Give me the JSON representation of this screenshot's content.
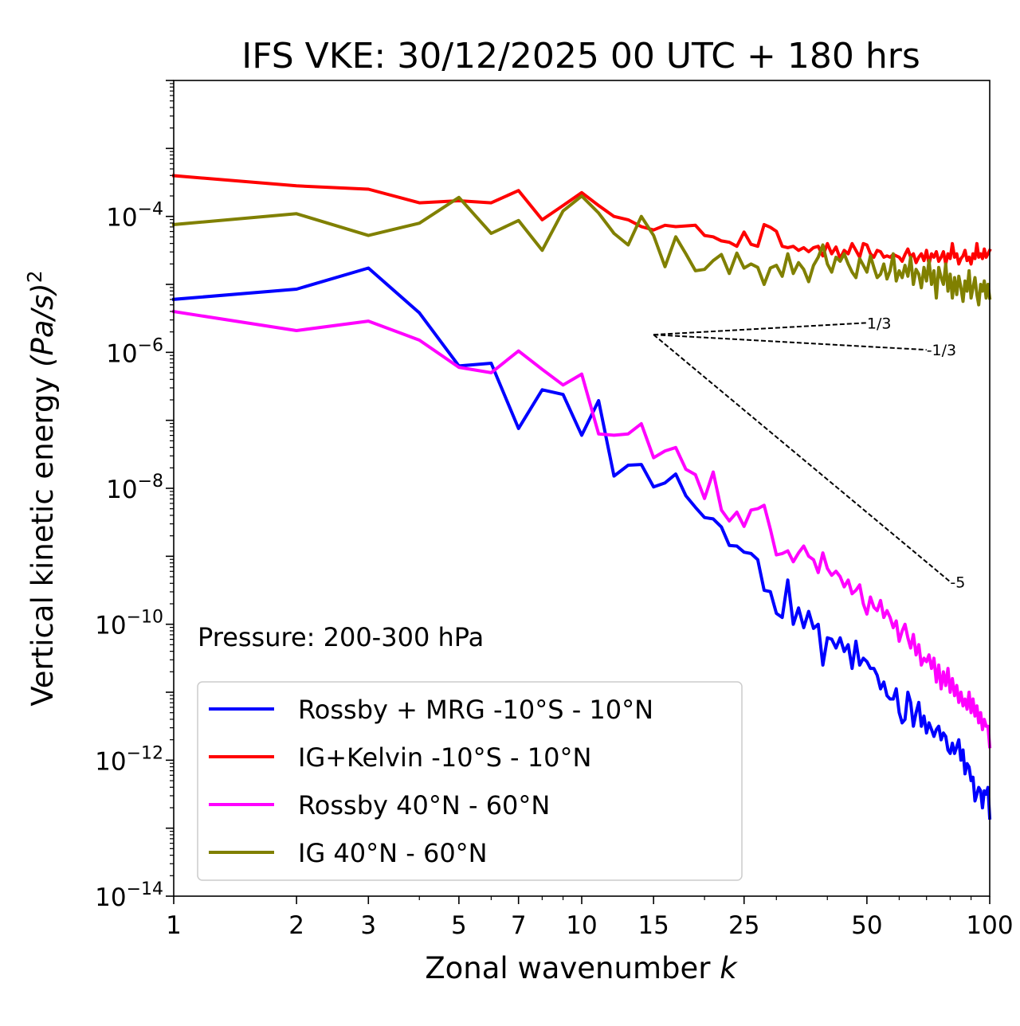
{
  "chart_data": {
    "type": "line",
    "title": "IFS VKE: 30/12/2025 00 UTC + 180 hrs",
    "xlabel": "Zonal wavenumber",
    "xlabel_var": "k",
    "ylabel": "Vertical kinetic energy",
    "ylabel_unit": "(Pa/s)",
    "ylabel_exponent": "2",
    "xscale": "log",
    "yscale": "log",
    "xlim": [
      1,
      100
    ],
    "ylim": [
      1e-14,
      0.01
    ],
    "xticks": [
      1,
      2,
      3,
      5,
      7,
      10,
      15,
      25,
      50,
      100
    ],
    "xtick_labels": [
      "1",
      "2",
      "3",
      "5",
      "7",
      "10",
      "15",
      "25",
      "50",
      "100"
    ],
    "yticks": [
      1e-14,
      1e-12,
      1e-10,
      1e-08,
      1e-06,
      0.0001
    ],
    "ytick_base": "10",
    "ytick_exponents": [
      "−14",
      "−12",
      "−10",
      "−8",
      "−6",
      "−4"
    ],
    "annotation": "Pressure: 200-300 hPa",
    "legend_position": "lower-left",
    "series": [
      {
        "name": "Rossby + MRG -10°S - 10°N",
        "color": "#0000ff",
        "x": [
          1,
          2,
          3,
          4,
          5,
          6,
          7,
          8,
          9,
          10,
          11,
          12,
          13,
          14,
          15,
          16,
          17,
          18,
          19,
          20,
          21,
          22,
          23,
          24,
          25,
          26,
          27,
          28,
          29,
          30,
          31,
          32,
          33,
          34,
          35,
          36,
          37,
          38,
          39,
          40,
          41,
          42,
          43,
          44,
          45,
          46,
          47,
          48,
          49,
          50,
          51,
          52,
          53,
          54,
          55,
          56,
          57,
          58,
          59,
          60,
          61,
          62,
          63,
          64,
          65,
          66,
          67,
          68,
          69,
          70,
          71,
          72,
          73,
          74,
          75,
          76,
          77,
          78,
          79,
          80,
          81,
          82,
          83,
          84,
          85,
          86,
          87,
          88,
          89,
          90,
          91,
          92,
          93,
          94,
          95,
          96,
          97,
          98,
          99,
          100
        ],
        "y_log10": [
          -5.22,
          -5.07,
          -4.76,
          -5.42,
          -6.2,
          -6.16,
          -7.12,
          -6.55,
          -6.62,
          -7.22,
          -6.71,
          -7.82,
          -7.66,
          -7.65,
          -7.98,
          -7.92,
          -7.79,
          -8.11,
          -8.28,
          -8.43,
          -8.45,
          -8.57,
          -8.84,
          -8.85,
          -8.94,
          -8.96,
          -9.05,
          -9.5,
          -9.52,
          -9.84,
          -9.9,
          -9.35,
          -10.0,
          -9.76,
          -10.05,
          -9.81,
          -10.06,
          -10.0,
          -10.6,
          -10.2,
          -10.22,
          -10.35,
          -10.2,
          -10.4,
          -10.3,
          -10.65,
          -10.25,
          -10.6,
          -10.5,
          -10.55,
          -10.65,
          -10.65,
          -10.75,
          -10.95,
          -10.85,
          -11.05,
          -11.1,
          -11.1,
          -10.95,
          -11.3,
          -11.45,
          -11.4,
          -11.0,
          -11.15,
          -11.5,
          -11.3,
          -11.15,
          -11.5,
          -11.35,
          -11.6,
          -11.45,
          -11.55,
          -11.65,
          -11.55,
          -11.5,
          -11.7,
          -11.6,
          -11.65,
          -11.85,
          -11.9,
          -11.75,
          -11.9,
          -11.8,
          -11.7,
          -12.0,
          -11.85,
          -12.2,
          -12.05,
          -12.1,
          -12.3,
          -12.25,
          -12.6,
          -12.5,
          -12.4,
          -12.45,
          -12.7,
          -12.45,
          -12.5,
          -12.4,
          -12.85
        ]
      },
      {
        "name": "IG+Kelvin -10°S - 10°N",
        "color": "#ff0000",
        "x": [
          1,
          2,
          3,
          4,
          5,
          6,
          7,
          8,
          9,
          10,
          11,
          12,
          13,
          14,
          15,
          16,
          17,
          18,
          19,
          20,
          21,
          22,
          23,
          24,
          25,
          26,
          27,
          28,
          29,
          30,
          31,
          32,
          33,
          34,
          35,
          36,
          37,
          38,
          39,
          40,
          41,
          42,
          43,
          44,
          45,
          46,
          47,
          48,
          49,
          50,
          51,
          52,
          53,
          54,
          55,
          56,
          57,
          58,
          59,
          60,
          61,
          62,
          63,
          64,
          65,
          66,
          67,
          68,
          69,
          70,
          71,
          72,
          73,
          74,
          75,
          76,
          77,
          78,
          79,
          80,
          81,
          82,
          83,
          84,
          85,
          86,
          87,
          88,
          89,
          90,
          91,
          92,
          93,
          94,
          95,
          96,
          97,
          98,
          99,
          100
        ],
        "y_log10": [
          -3.4,
          -3.55,
          -3.6,
          -3.8,
          -3.77,
          -3.8,
          -3.62,
          -4.05,
          -3.84,
          -3.65,
          -3.84,
          -4.0,
          -4.05,
          -4.15,
          -4.2,
          -4.13,
          -4.15,
          -4.14,
          -4.13,
          -4.28,
          -4.3,
          -4.36,
          -4.38,
          -4.44,
          -4.23,
          -4.41,
          -4.44,
          -4.12,
          -4.16,
          -4.22,
          -4.44,
          -4.46,
          -4.44,
          -4.5,
          -4.46,
          -4.52,
          -4.46,
          -4.44,
          -4.58,
          -4.4,
          -4.55,
          -4.45,
          -4.62,
          -4.5,
          -4.55,
          -4.4,
          -4.5,
          -4.6,
          -4.4,
          -4.42,
          -4.55,
          -4.6,
          -4.5,
          -4.52,
          -4.6,
          -4.58,
          -4.6,
          -4.56,
          -4.58,
          -4.6,
          -4.66,
          -4.56,
          -4.48,
          -4.6,
          -4.55,
          -4.68,
          -4.6,
          -4.55,
          -4.65,
          -4.5,
          -4.7,
          -4.55,
          -4.6,
          -4.52,
          -4.66,
          -4.6,
          -4.52,
          -4.7,
          -4.55,
          -4.62,
          -4.4,
          -4.6,
          -4.55,
          -4.7,
          -4.62,
          -4.58,
          -4.5,
          -4.65,
          -4.6,
          -4.7,
          -4.55,
          -4.62,
          -4.4,
          -4.6,
          -4.55,
          -4.62,
          -4.48,
          -4.6,
          -4.55,
          -4.5
        ]
      },
      {
        "name": "Rossby 40°N - 60°N",
        "color": "#ff00ff",
        "x": [
          1,
          2,
          3,
          4,
          5,
          6,
          7,
          8,
          9,
          10,
          11,
          12,
          13,
          14,
          15,
          16,
          17,
          18,
          19,
          20,
          21,
          22,
          23,
          24,
          25,
          26,
          27,
          28,
          29,
          30,
          31,
          32,
          33,
          34,
          35,
          36,
          37,
          38,
          39,
          40,
          41,
          42,
          43,
          44,
          45,
          46,
          47,
          48,
          49,
          50,
          51,
          52,
          53,
          54,
          55,
          56,
          57,
          58,
          59,
          60,
          61,
          62,
          63,
          64,
          65,
          66,
          67,
          68,
          69,
          70,
          71,
          72,
          73,
          74,
          75,
          76,
          77,
          78,
          79,
          80,
          81,
          82,
          83,
          84,
          85,
          86,
          87,
          88,
          89,
          90,
          91,
          92,
          93,
          94,
          95,
          96,
          97,
          98,
          99,
          100
        ],
        "y_log10": [
          -5.4,
          -5.68,
          -5.54,
          -5.82,
          -6.22,
          -6.3,
          -5.98,
          -6.25,
          -6.48,
          -6.32,
          -7.2,
          -7.22,
          -7.2,
          -7.05,
          -7.55,
          -7.45,
          -7.4,
          -7.72,
          -7.8,
          -8.15,
          -7.76,
          -8.32,
          -8.48,
          -8.35,
          -8.56,
          -8.32,
          -8.3,
          -8.25,
          -8.6,
          -8.98,
          -8.96,
          -8.92,
          -9.08,
          -8.95,
          -8.85,
          -9.0,
          -9.05,
          -9.24,
          -8.95,
          -9.18,
          -9.28,
          -9.22,
          -9.3,
          -9.45,
          -9.35,
          -9.55,
          -9.5,
          -9.42,
          -9.7,
          -9.85,
          -9.6,
          -9.75,
          -9.8,
          -9.65,
          -9.9,
          -9.8,
          -9.9,
          -10.05,
          -9.95,
          -10.25,
          -10.1,
          -10.0,
          -10.2,
          -10.35,
          -10.15,
          -10.45,
          -10.3,
          -10.6,
          -10.5,
          -10.55,
          -10.45,
          -10.65,
          -10.5,
          -10.85,
          -10.6,
          -10.95,
          -10.7,
          -10.9,
          -10.65,
          -11.0,
          -10.8,
          -11.05,
          -10.9,
          -11.15,
          -11.0,
          -11.2,
          -11.1,
          -11.25,
          -11.0,
          -11.3,
          -11.1,
          -11.35,
          -11.2,
          -11.45,
          -11.3,
          -11.55,
          -11.4,
          -11.5,
          -11.5,
          -11.8
        ]
      },
      {
        "name": "IG 40°N - 60°N",
        "color": "#808000",
        "x": [
          1,
          2,
          3,
          4,
          5,
          6,
          7,
          8,
          9,
          10,
          11,
          12,
          13,
          14,
          15,
          16,
          17,
          18,
          19,
          20,
          21,
          22,
          23,
          24,
          25,
          26,
          27,
          28,
          29,
          30,
          31,
          32,
          33,
          34,
          35,
          36,
          37,
          38,
          39,
          40,
          41,
          42,
          43,
          44,
          45,
          46,
          47,
          48,
          49,
          50,
          51,
          52,
          53,
          54,
          55,
          56,
          57,
          58,
          59,
          60,
          61,
          62,
          63,
          64,
          65,
          66,
          67,
          68,
          69,
          70,
          71,
          72,
          73,
          74,
          75,
          76,
          77,
          78,
          79,
          80,
          81,
          82,
          83,
          84,
          85,
          86,
          87,
          88,
          89,
          90,
          91,
          92,
          93,
          94,
          95,
          96,
          97,
          98,
          99,
          100
        ],
        "y_log10": [
          -4.12,
          -3.96,
          -4.28,
          -4.1,
          -3.72,
          -4.25,
          -4.06,
          -4.5,
          -3.92,
          -3.7,
          -3.95,
          -4.25,
          -4.42,
          -4.0,
          -4.28,
          -4.74,
          -4.3,
          -4.55,
          -4.8,
          -4.78,
          -4.65,
          -4.56,
          -4.84,
          -4.54,
          -4.76,
          -4.7,
          -4.75,
          -5.0,
          -4.76,
          -4.72,
          -4.88,
          -4.55,
          -4.84,
          -4.68,
          -4.78,
          -4.96,
          -4.72,
          -4.6,
          -4.42,
          -4.7,
          -4.82,
          -4.6,
          -4.66,
          -4.55,
          -4.7,
          -4.82,
          -4.9,
          -4.62,
          -4.72,
          -4.82,
          -4.58,
          -4.75,
          -4.9,
          -4.85,
          -4.7,
          -4.92,
          -4.8,
          -4.55,
          -4.95,
          -4.8,
          -4.9,
          -4.72,
          -4.88,
          -4.6,
          -5.0,
          -4.78,
          -4.85,
          -5.05,
          -4.75,
          -4.95,
          -4.65,
          -5.0,
          -4.8,
          -5.2,
          -4.75,
          -4.9,
          -5.0,
          -4.7,
          -5.1,
          -4.85,
          -5.2,
          -4.9,
          -5.15,
          -4.88,
          -5.05,
          -5.25,
          -4.95,
          -5.1,
          -4.8,
          -5.2,
          -5.05,
          -4.9,
          -5.15,
          -5.3,
          -5.0,
          -5.1,
          -4.95,
          -5.2,
          -5.0,
          -5.2
        ]
      }
    ],
    "reference_lines": [
      {
        "label": "1/3",
        "slope": 0.333,
        "k_start": 15,
        "k_end": 50,
        "y_start_log10": -5.74
      },
      {
        "label": "-1/3",
        "slope": -0.333,
        "k_start": 15,
        "k_end": 70,
        "y_start_log10": -5.74
      },
      {
        "label": "-5",
        "slope": -5.0,
        "k_start": 15,
        "k_end": 80,
        "y_start_log10": -5.74
      }
    ]
  }
}
